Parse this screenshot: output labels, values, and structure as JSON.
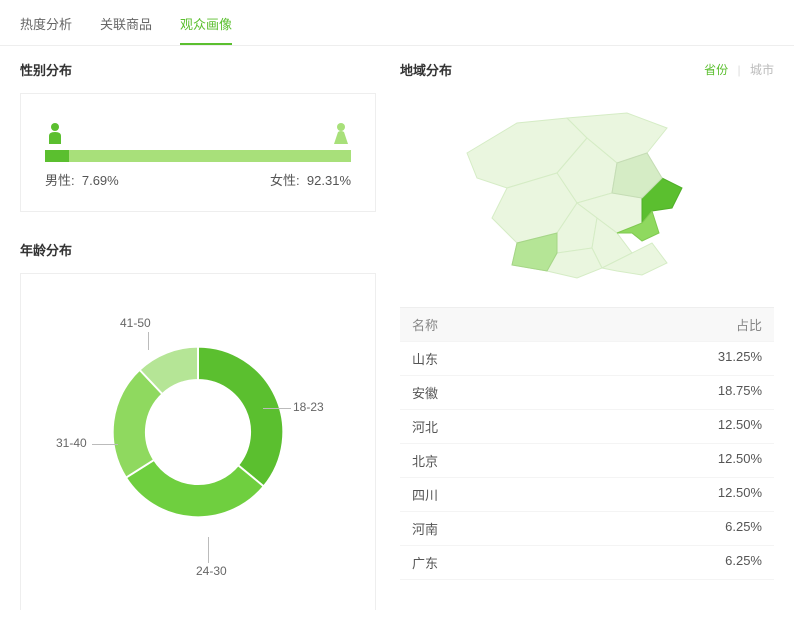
{
  "tabs": [
    {
      "label": "热度分析",
      "active": false
    },
    {
      "label": "关联商品",
      "active": false
    },
    {
      "label": "观众画像",
      "active": true
    }
  ],
  "gender": {
    "title": "性别分布",
    "male_label": "男性:",
    "male_pct": "7.69%",
    "male_val": 7.69,
    "female_label": "女性:",
    "female_pct": "92.31%",
    "male_color": "#5bbf2f",
    "female_color": "#a8e07a",
    "icon_male_color": "#5bbf2f",
    "icon_female_color": "#a8e07a"
  },
  "age": {
    "title": "年龄分布",
    "type": "donut",
    "inner_radius": 55,
    "outer_radius": 90,
    "slices": [
      {
        "label": "18-23",
        "value": 36,
        "color": "#5bbf2f"
      },
      {
        "label": "24-30",
        "value": 30,
        "color": "#6fcf3f"
      },
      {
        "label": "31-40",
        "value": 22,
        "color": "#8fd95f"
      },
      {
        "label": "41-50",
        "value": 12,
        "color": "#b5e596"
      }
    ],
    "background": "#ffffff"
  },
  "region": {
    "title": "地域分布",
    "toggle": {
      "province": "省份",
      "city": "城市",
      "selected": "province"
    },
    "map_base_color": "#eaf6df",
    "map_hi_color": "#6fcf3f",
    "map_mid_color": "#b5e596",
    "table_header": {
      "name": "名称",
      "pct": "占比"
    },
    "rows": [
      {
        "name": "山东",
        "pct": "31.25%"
      },
      {
        "name": "安徽",
        "pct": "18.75%"
      },
      {
        "name": "河北",
        "pct": "12.50%"
      },
      {
        "name": "北京",
        "pct": "12.50%"
      },
      {
        "name": "四川",
        "pct": "12.50%"
      },
      {
        "name": "河南",
        "pct": "6.25%"
      },
      {
        "name": "广东",
        "pct": "6.25%"
      }
    ]
  }
}
